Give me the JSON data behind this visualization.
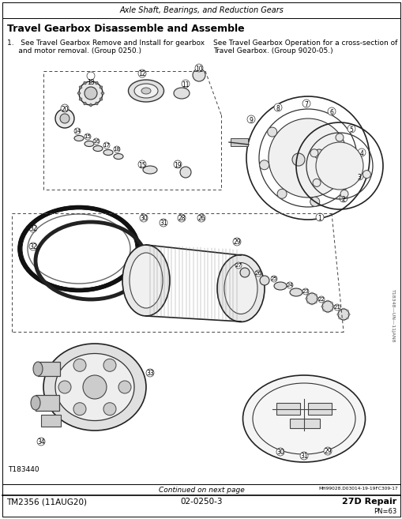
{
  "page_header": "Axle Shaft, Bearings, and Reduction Gears",
  "section_title": "Travel Gearbox Disassemble and Assemble",
  "body_text_left_1": "1.   See Travel Gearbox Remove and Install for gearbox",
  "body_text_left_2": "     and motor removal. (Group 0250.)",
  "body_text_right_1": "See Travel Gearbox Operation for a cross-section of",
  "body_text_right_2": "Travel Gearbox. (Group 9020-05.)",
  "footer_code": "T183440",
  "footer_center": "Continued on next page",
  "footer_right_small": "MH99028.D03014-19-19FC309-17",
  "footer_tm": "TM2356 (11AUG20)",
  "footer_page": "02-0250-3",
  "footer_repair": "27D Repair",
  "footer_pn": "PN=63",
  "sidebar_text": "T18348—UN—11JAN8",
  "bg_color": "#ffffff",
  "border_color": "#000000",
  "text_color": "#000000"
}
